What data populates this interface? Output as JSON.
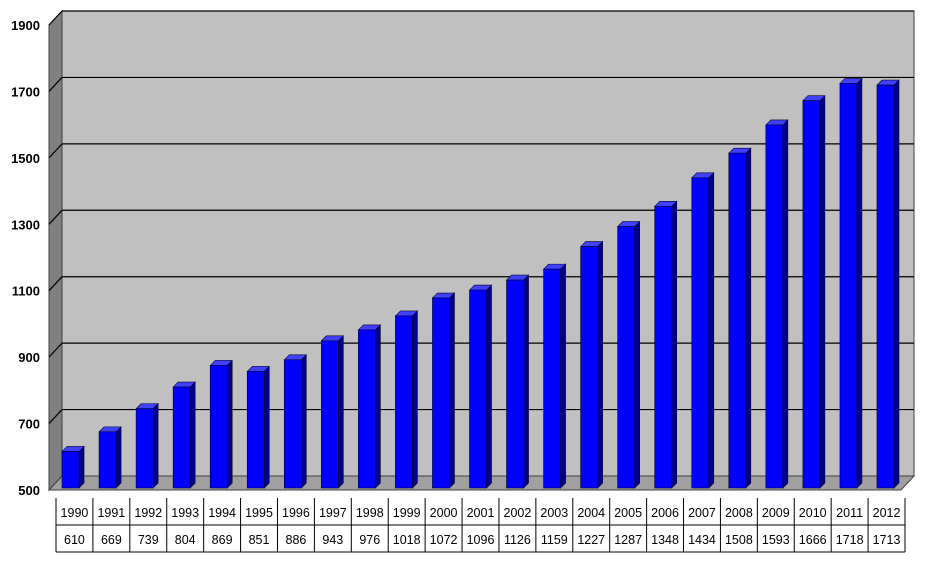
{
  "chart_data": {
    "type": "bar",
    "title": "",
    "xlabel": "",
    "ylabel": "",
    "categories": [
      "1990",
      "1991",
      "1992",
      "1993",
      "1994",
      "1995",
      "1996",
      "1997",
      "1998",
      "1999",
      "2000",
      "2001",
      "2002",
      "2003",
      "2004",
      "2005",
      "2006",
      "2007",
      "2008",
      "2009",
      "2010",
      "2011",
      "2012"
    ],
    "values": [
      610,
      669,
      739,
      804,
      869,
      851,
      886,
      943,
      976,
      1018,
      1072,
      1096,
      1126,
      1159,
      1227,
      1287,
      1348,
      1434,
      1508,
      1593,
      1666,
      1718,
      1713
    ],
    "ylim": [
      500,
      1900
    ],
    "yticks": [
      500,
      700,
      900,
      1100,
      1300,
      1500,
      1700,
      1900
    ],
    "grid": true,
    "legend": "none",
    "data_table": true,
    "colors": {
      "bar_face": "#0000ff",
      "bar_side": "#00008a",
      "bar_top": "#4040ff",
      "plot_back": "#c0c0c0",
      "plot_side": "#808080",
      "plot_floor": "#a0a0a0",
      "gridline": "#000000"
    }
  }
}
